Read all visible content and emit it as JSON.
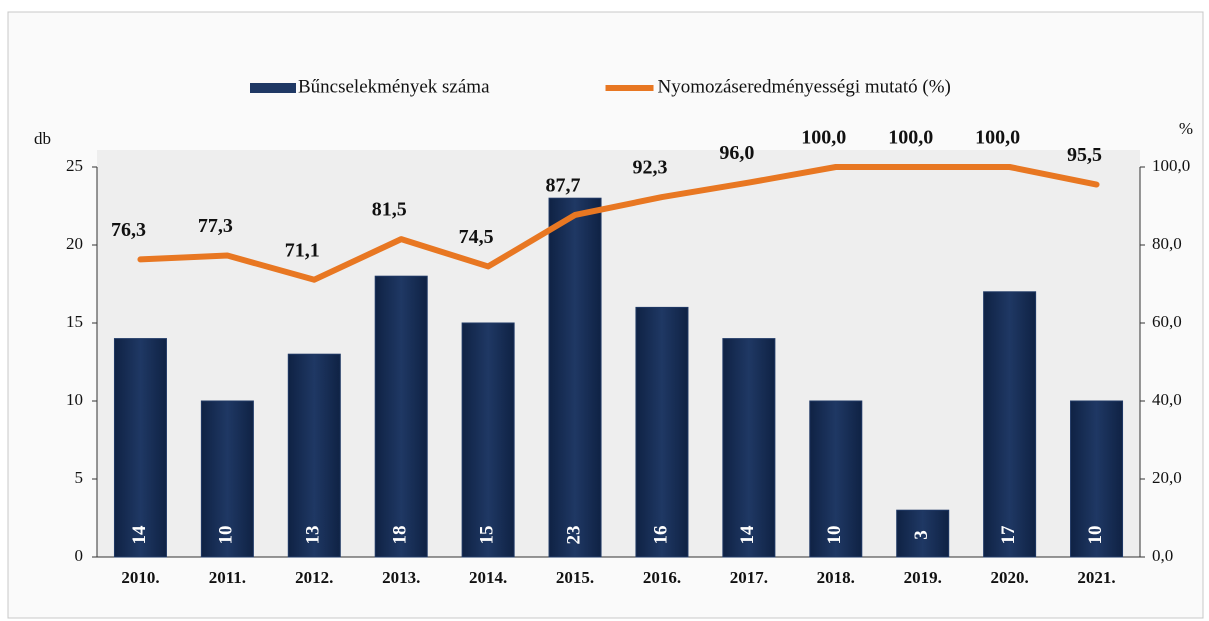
{
  "chart_data": {
    "type": "combo",
    "categories": [
      "2010.",
      "2011.",
      "2012.",
      "2013.",
      "2014.",
      "2015.",
      "2016.",
      "2017.",
      "2018.",
      "2019.",
      "2020.",
      "2021."
    ],
    "series": [
      {
        "name": "Bűncselekmények száma",
        "type": "bar",
        "color": "#1f3864",
        "values": [
          14,
          10,
          13,
          18,
          15,
          23,
          16,
          14,
          10,
          3,
          17,
          10
        ]
      },
      {
        "name": "Nyomozáseredményességi mutató (%)",
        "type": "line",
        "axis": "y2",
        "color": "#e87722",
        "values": [
          76.3,
          77.3,
          71.1,
          81.5,
          74.5,
          87.7,
          92.3,
          96.0,
          100.0,
          100.0,
          100.0,
          95.5
        ],
        "value_labels": [
          "76,3",
          "77,3",
          "71,1",
          "81,5",
          "74,5",
          "87,7",
          "92,3",
          "96,0",
          "100,0",
          "100,0",
          "100,0",
          "95,5"
        ]
      }
    ],
    "y_label": "db",
    "y2_label": "%",
    "ylim": [
      0,
      25
    ],
    "yticks": [
      0,
      5,
      10,
      15,
      20,
      25
    ],
    "y2lim": [
      0,
      100
    ],
    "y2ticks": [
      {
        "value": 0,
        "label": "0,0"
      },
      {
        "value": 20,
        "label": "20,0"
      },
      {
        "value": 40,
        "label": "40,0"
      },
      {
        "value": 60,
        "label": "60,0"
      },
      {
        "value": 80,
        "label": "80,0"
      },
      {
        "value": 100,
        "label": "100,0"
      }
    ]
  }
}
